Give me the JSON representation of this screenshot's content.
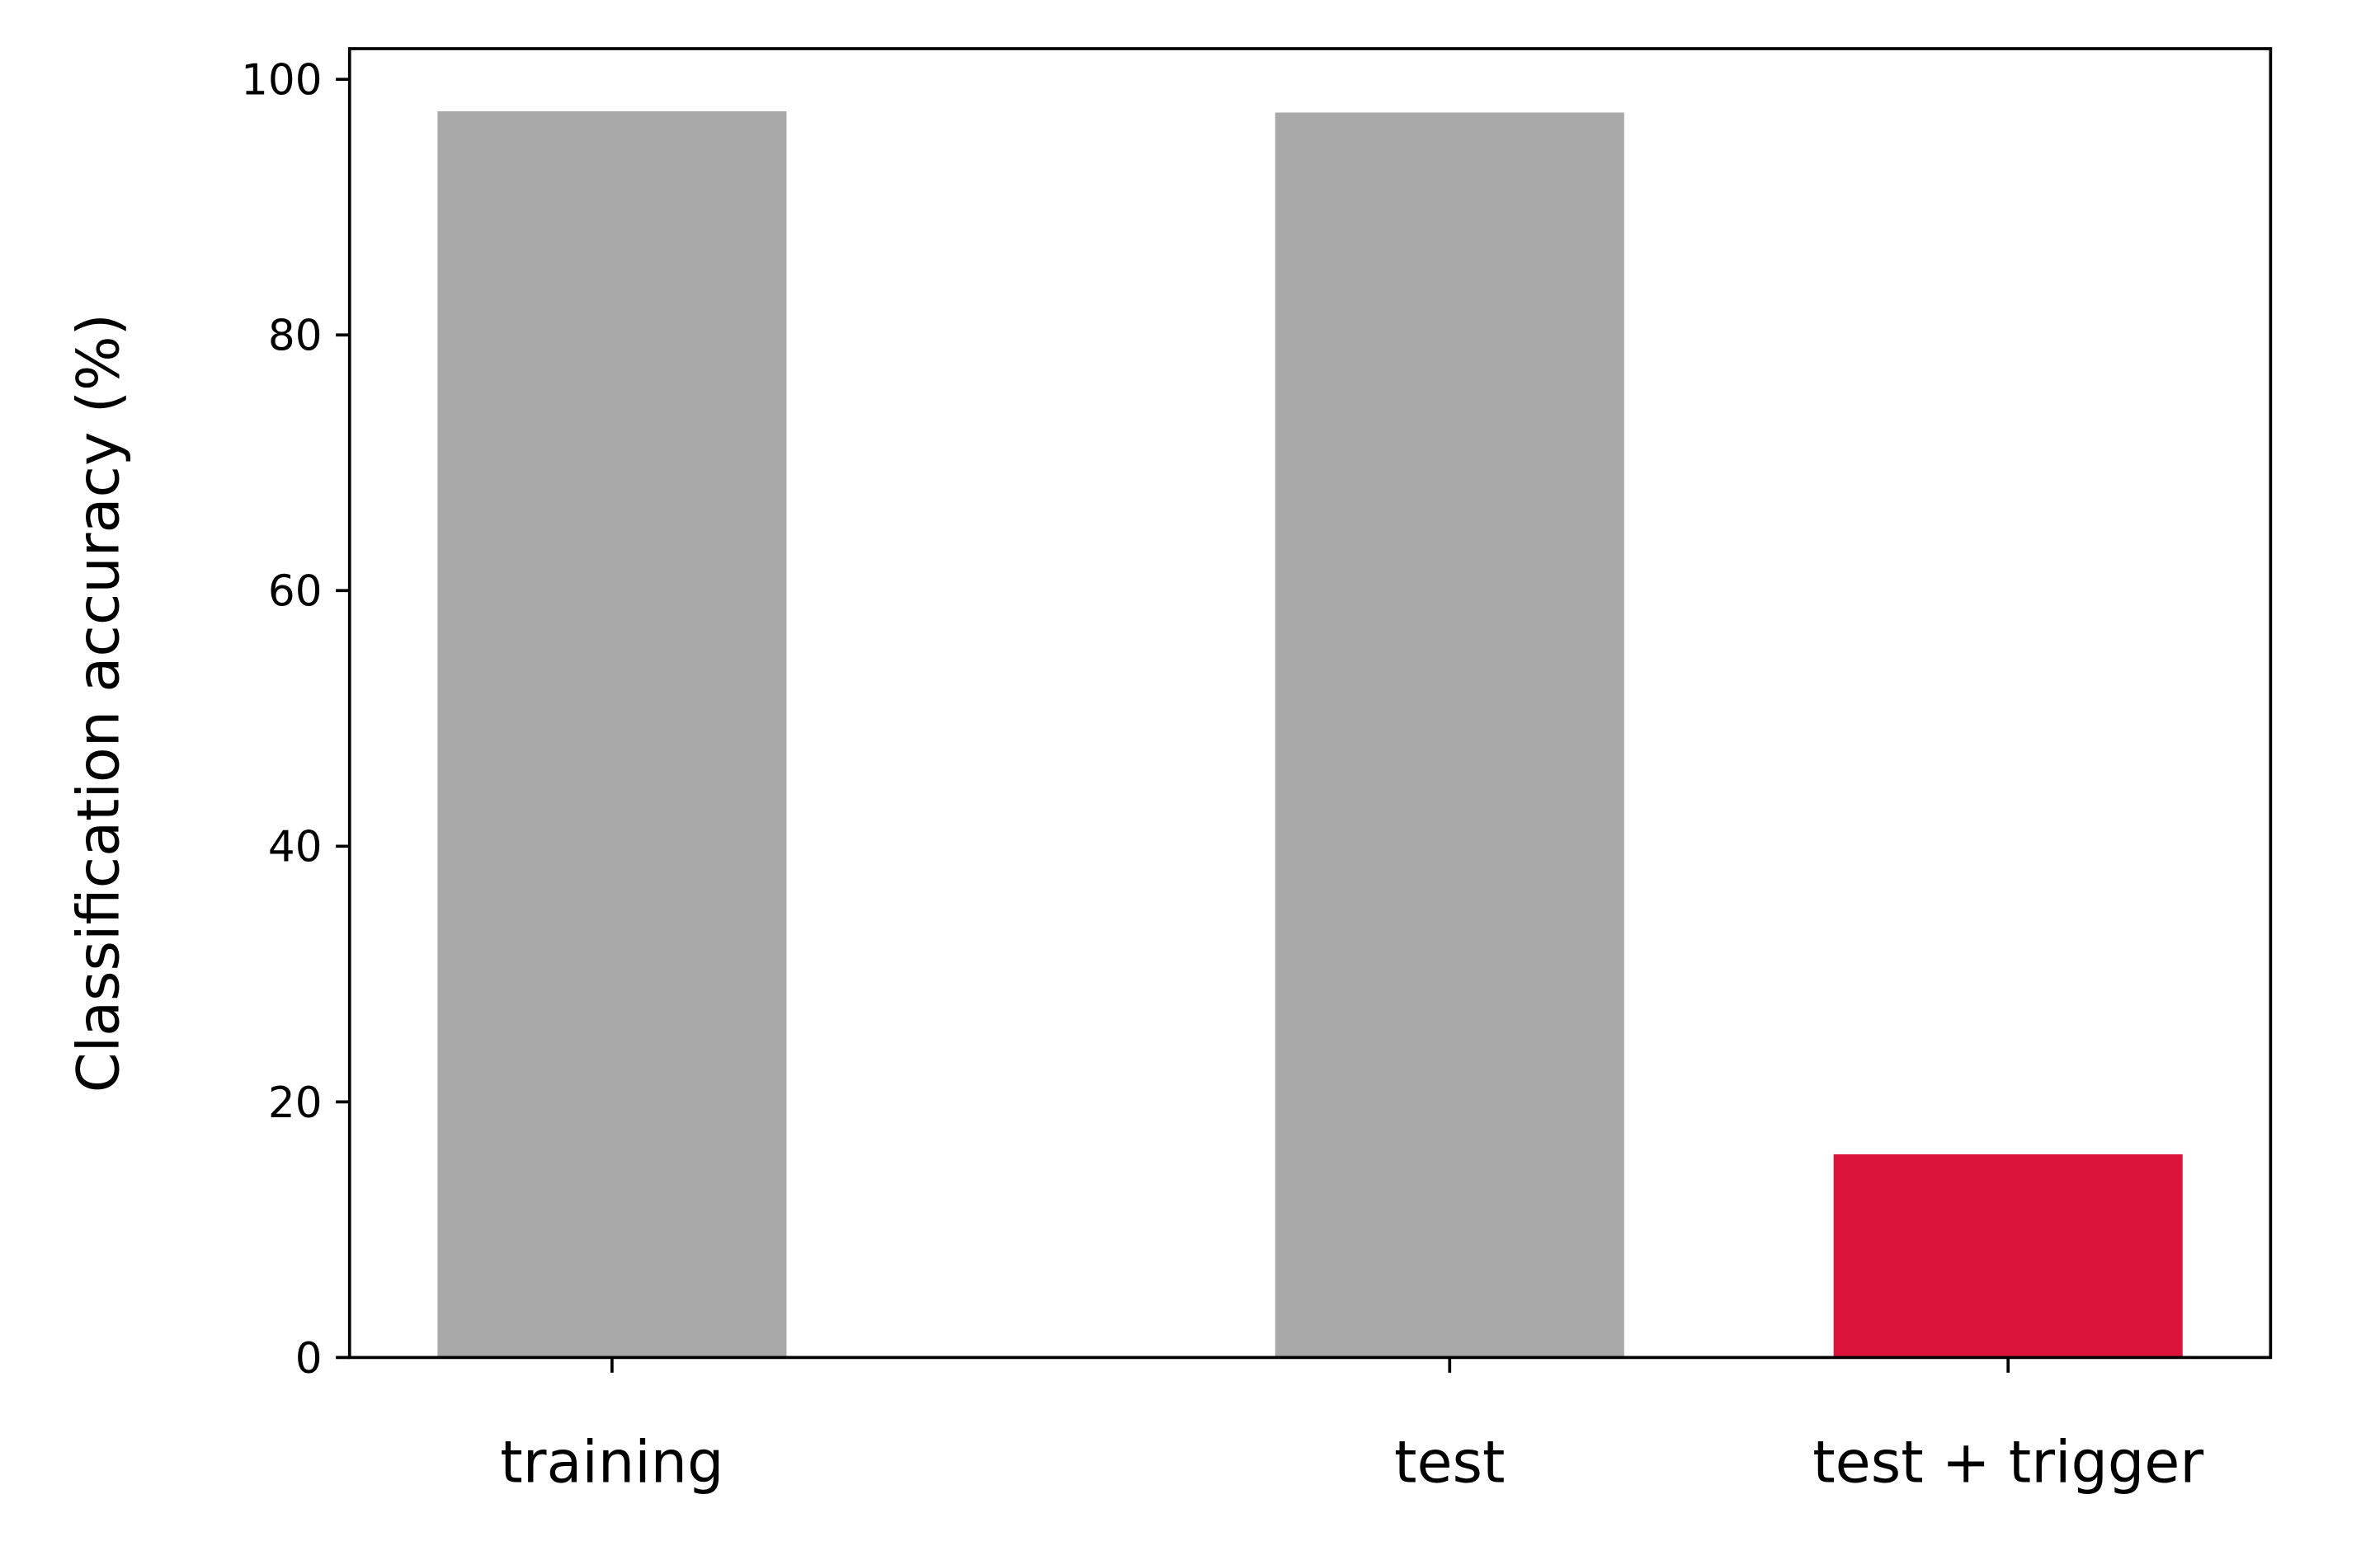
{
  "chart_data": {
    "type": "bar",
    "categories": [
      "training",
      "test",
      "test + trigger"
    ],
    "category_positions": [
      0,
      1.5,
      2.5
    ],
    "values": [
      97.5,
      97.4,
      15.9
    ],
    "bar_colors": [
      "#a9a9a9",
      "#a9a9a9",
      "#dc143c"
    ],
    "ylabel": "Classification accuracy (%)",
    "xlabel": "",
    "ylim": [
      0,
      102.4
    ],
    "xlim": [
      -0.47,
      2.97
    ],
    "bar_width": 0.625,
    "yticks": [
      0,
      20,
      40,
      60,
      80,
      100
    ],
    "grid": false
  }
}
